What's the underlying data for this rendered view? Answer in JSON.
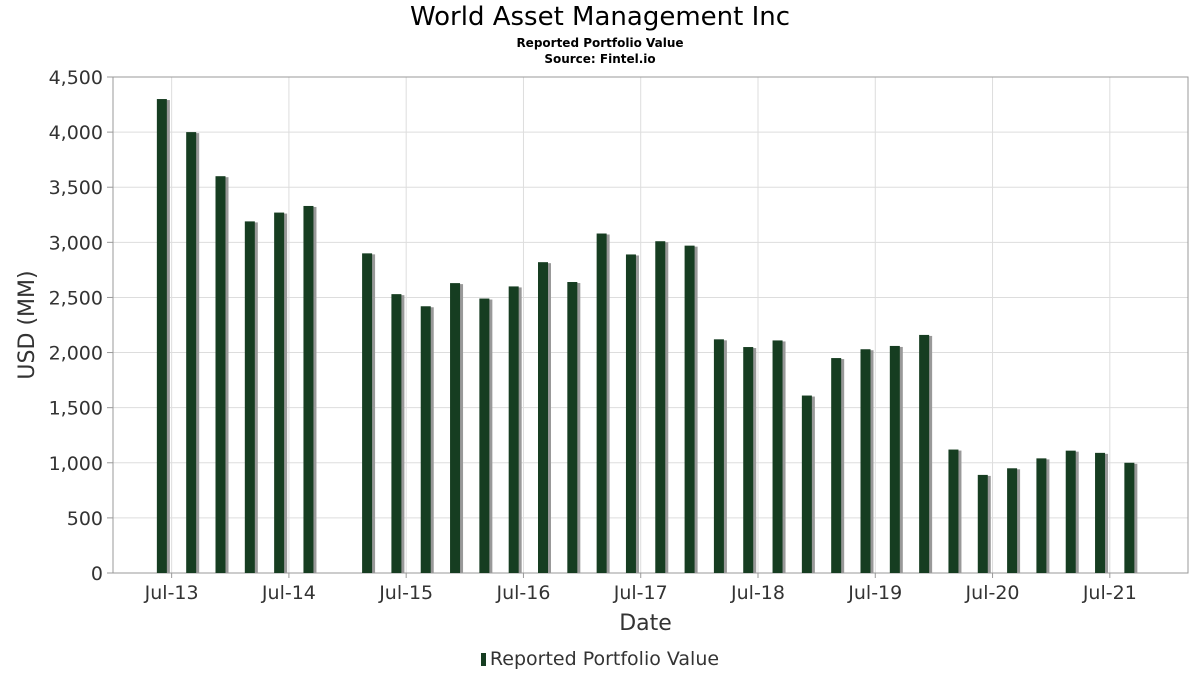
{
  "title": "World Asset Management Inc",
  "subtitle": "Reported Portfolio Value",
  "source": "Source: Fintel.io",
  "colors": {
    "bar": "#163d21",
    "bar_shadow": "#999999",
    "grid": "#dddddd",
    "axis": "#999999",
    "text": "#333333"
  },
  "chart_data": {
    "type": "bar",
    "title": "World Asset Management Inc",
    "subtitle": "Reported Portfolio Value",
    "xlabel": "Date",
    "ylabel": "USD (MM)",
    "ylim": [
      0,
      4500
    ],
    "yticks": [
      "0",
      "500",
      "1,000",
      "1,500",
      "2,000",
      "2,500",
      "3,000",
      "3,500",
      "4,000",
      "4,500"
    ],
    "ytick_values": [
      0,
      500,
      1000,
      1500,
      2000,
      2500,
      3000,
      3500,
      4000,
      4500
    ],
    "xticks": [
      {
        "label": "Jul-13",
        "date": "2013-07"
      },
      {
        "label": "Jul-14",
        "date": "2014-07"
      },
      {
        "label": "Jul-15",
        "date": "2015-07"
      },
      {
        "label": "Jul-16",
        "date": "2016-07"
      },
      {
        "label": "Jul-17",
        "date": "2017-07"
      },
      {
        "label": "Jul-18",
        "date": "2018-07"
      },
      {
        "label": "Jul-19",
        "date": "2019-07"
      },
      {
        "label": "Jul-20",
        "date": "2020-07"
      },
      {
        "label": "Jul-21",
        "date": "2021-07"
      }
    ],
    "xlim": [
      "2013-01",
      "2022-03"
    ],
    "grid": true,
    "legend_position": "bottom-center",
    "series": [
      {
        "name": "Reported Portfolio Value",
        "points": [
          {
            "date": "2013-06",
            "value": 4300
          },
          {
            "date": "2013-09",
            "value": 4000
          },
          {
            "date": "2013-12",
            "value": 3600
          },
          {
            "date": "2014-03",
            "value": 3190
          },
          {
            "date": "2014-06",
            "value": 3270
          },
          {
            "date": "2014-09",
            "value": 3330
          },
          {
            "date": "2015-03",
            "value": 2900
          },
          {
            "date": "2015-06",
            "value": 2530
          },
          {
            "date": "2015-09",
            "value": 2420
          },
          {
            "date": "2015-12",
            "value": 2630
          },
          {
            "date": "2016-03",
            "value": 2490
          },
          {
            "date": "2016-06",
            "value": 2600
          },
          {
            "date": "2016-09",
            "value": 2820
          },
          {
            "date": "2016-12",
            "value": 2640
          },
          {
            "date": "2017-03",
            "value": 3080
          },
          {
            "date": "2017-06",
            "value": 2890
          },
          {
            "date": "2017-09",
            "value": 3010
          },
          {
            "date": "2017-12",
            "value": 2970
          },
          {
            "date": "2018-03",
            "value": 2120
          },
          {
            "date": "2018-06",
            "value": 2050
          },
          {
            "date": "2018-09",
            "value": 2110
          },
          {
            "date": "2018-12",
            "value": 1610
          },
          {
            "date": "2019-03",
            "value": 1950
          },
          {
            "date": "2019-06",
            "value": 2030
          },
          {
            "date": "2019-09",
            "value": 2060
          },
          {
            "date": "2019-12",
            "value": 2160
          },
          {
            "date": "2020-03",
            "value": 1120
          },
          {
            "date": "2020-06",
            "value": 890
          },
          {
            "date": "2020-09",
            "value": 950
          },
          {
            "date": "2020-12",
            "value": 1040
          },
          {
            "date": "2021-03",
            "value": 1110
          },
          {
            "date": "2021-06",
            "value": 1090
          },
          {
            "date": "2021-09",
            "value": 1000
          }
        ]
      }
    ]
  }
}
